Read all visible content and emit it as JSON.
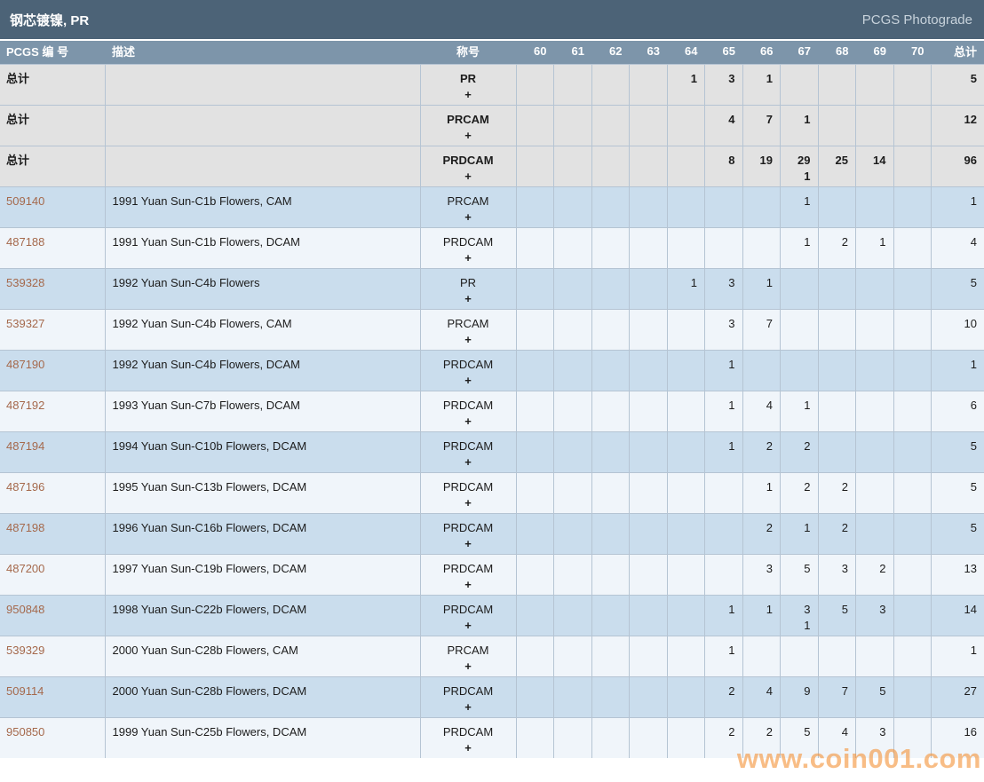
{
  "page": {
    "title": "钢芯镀镍, PR",
    "photograde_link": "PCGS Photograde",
    "watermark": "www.coin001.com"
  },
  "colors": {
    "titlebar_bg": "#4c6377",
    "header_bg": "#7d95aa",
    "total_row_bg": "#e2e2e2",
    "row_blue_bg": "#cadded",
    "row_light_bg": "#f0f5fa",
    "link_color": "#a5694c",
    "border_color": "#b5c4d3",
    "watermark_color": "#f4953d"
  },
  "table": {
    "headers": {
      "number": "PCGS 编 号",
      "description": "描述",
      "designation": "称号",
      "grades": [
        "60",
        "61",
        "62",
        "63",
        "64",
        "65",
        "66",
        "67",
        "68",
        "69",
        "70"
      ],
      "total": "总计"
    },
    "rows": [
      {
        "is_total": true,
        "number": "总计",
        "description": "",
        "designation": "PR",
        "plus": "+",
        "grades": [
          "",
          "",
          "",
          "",
          "1",
          "3",
          "1",
          "",
          "",
          "",
          ""
        ],
        "total": "5"
      },
      {
        "is_total": true,
        "number": "总计",
        "description": "",
        "designation": "PRCAM",
        "plus": "+",
        "grades": [
          "",
          "",
          "",
          "",
          "",
          "4",
          "7",
          "1",
          "",
          "",
          ""
        ],
        "total": "12"
      },
      {
        "is_total": true,
        "number": "总计",
        "description": "",
        "designation": "PRDCAM",
        "plus": "+",
        "grades": [
          "",
          "",
          "",
          "",
          "",
          "8",
          "19",
          "29",
          "25",
          "14",
          ""
        ],
        "grades_plus": [
          "",
          "",
          "",
          "",
          "",
          "",
          "",
          "1",
          "",
          "",
          ""
        ],
        "total": "96"
      },
      {
        "is_total": false,
        "number": "509140",
        "description": "1991 Yuan Sun-C1b Flowers, CAM",
        "designation": "PRCAM",
        "plus": "+",
        "grades": [
          "",
          "",
          "",
          "",
          "",
          "",
          "",
          "1",
          "",
          "",
          ""
        ],
        "total": "1"
      },
      {
        "is_total": false,
        "number": "487188",
        "description": "1991 Yuan Sun-C1b Flowers, DCAM",
        "designation": "PRDCAM",
        "plus": "+",
        "grades": [
          "",
          "",
          "",
          "",
          "",
          "",
          "",
          "1",
          "2",
          "1",
          ""
        ],
        "total": "4"
      },
      {
        "is_total": false,
        "number": "539328",
        "description": "1992 Yuan Sun-C4b Flowers",
        "designation": "PR",
        "plus": "+",
        "grades": [
          "",
          "",
          "",
          "",
          "1",
          "3",
          "1",
          "",
          "",
          "",
          ""
        ],
        "total": "5"
      },
      {
        "is_total": false,
        "number": "539327",
        "description": "1992 Yuan Sun-C4b Flowers, CAM",
        "designation": "PRCAM",
        "plus": "+",
        "grades": [
          "",
          "",
          "",
          "",
          "",
          "3",
          "7",
          "",
          "",
          "",
          ""
        ],
        "total": "10"
      },
      {
        "is_total": false,
        "number": "487190",
        "description": "1992 Yuan Sun-C4b Flowers, DCAM",
        "designation": "PRDCAM",
        "plus": "+",
        "grades": [
          "",
          "",
          "",
          "",
          "",
          "1",
          "",
          "",
          "",
          "",
          ""
        ],
        "total": "1"
      },
      {
        "is_total": false,
        "number": "487192",
        "description": "1993 Yuan Sun-C7b Flowers, DCAM",
        "designation": "PRDCAM",
        "plus": "+",
        "grades": [
          "",
          "",
          "",
          "",
          "",
          "1",
          "4",
          "1",
          "",
          "",
          ""
        ],
        "total": "6"
      },
      {
        "is_total": false,
        "number": "487194",
        "description": "1994 Yuan Sun-C10b Flowers, DCAM",
        "designation": "PRDCAM",
        "plus": "+",
        "grades": [
          "",
          "",
          "",
          "",
          "",
          "1",
          "2",
          "2",
          "",
          "",
          ""
        ],
        "total": "5"
      },
      {
        "is_total": false,
        "number": "487196",
        "description": "1995 Yuan Sun-C13b Flowers, DCAM",
        "designation": "PRDCAM",
        "plus": "+",
        "grades": [
          "",
          "",
          "",
          "",
          "",
          "",
          "1",
          "2",
          "2",
          "",
          ""
        ],
        "total": "5"
      },
      {
        "is_total": false,
        "number": "487198",
        "description": "1996 Yuan Sun-C16b Flowers, DCAM",
        "designation": "PRDCAM",
        "plus": "+",
        "grades": [
          "",
          "",
          "",
          "",
          "",
          "",
          "2",
          "1",
          "2",
          "",
          ""
        ],
        "total": "5"
      },
      {
        "is_total": false,
        "number": "487200",
        "description": "1997 Yuan Sun-C19b Flowers, DCAM",
        "designation": "PRDCAM",
        "plus": "+",
        "grades": [
          "",
          "",
          "",
          "",
          "",
          "",
          "3",
          "5",
          "3",
          "2",
          ""
        ],
        "total": "13"
      },
      {
        "is_total": false,
        "number": "950848",
        "description": "1998 Yuan Sun-C22b Flowers, DCAM",
        "designation": "PRDCAM",
        "plus": "+",
        "grades": [
          "",
          "",
          "",
          "",
          "",
          "1",
          "1",
          "3",
          "5",
          "3",
          ""
        ],
        "grades_plus": [
          "",
          "",
          "",
          "",
          "",
          "",
          "",
          "1",
          "",
          "",
          ""
        ],
        "total": "14"
      },
      {
        "is_total": false,
        "number": "539329",
        "description": "2000 Yuan Sun-C28b Flowers, CAM",
        "designation": "PRCAM",
        "plus": "+",
        "grades": [
          "",
          "",
          "",
          "",
          "",
          "1",
          "",
          "",
          "",
          "",
          ""
        ],
        "total": "1"
      },
      {
        "is_total": false,
        "number": "509114",
        "description": "2000 Yuan Sun-C28b Flowers, DCAM",
        "designation": "PRDCAM",
        "plus": "+",
        "grades": [
          "",
          "",
          "",
          "",
          "",
          "2",
          "4",
          "9",
          "7",
          "5",
          ""
        ],
        "total": "27"
      },
      {
        "is_total": false,
        "number": "950850",
        "description": "1999 Yuan Sun-C25b Flowers, DCAM",
        "designation": "PRDCAM",
        "plus": "+",
        "grades": [
          "",
          "",
          "",
          "",
          "",
          "2",
          "2",
          "5",
          "4",
          "3",
          ""
        ],
        "total": "16"
      }
    ]
  }
}
